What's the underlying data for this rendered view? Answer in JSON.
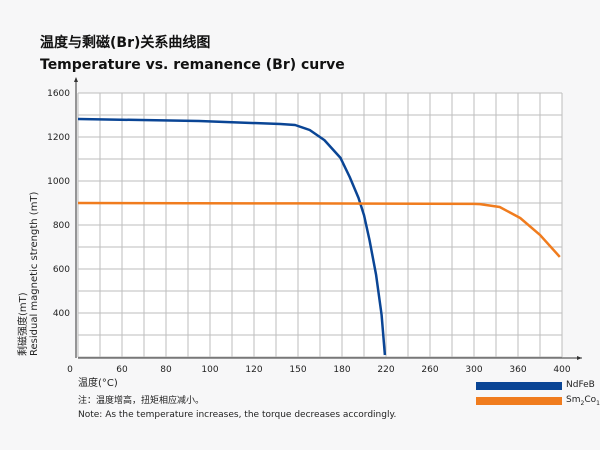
{
  "chart_data": {
    "type": "line",
    "title": "温度与剩磁(Br)关系曲线图",
    "subtitle": "Temperature vs. remanence (Br) curve",
    "xlabel": "温度(°C)",
    "ylabel_cn": "剩磁强度(mT)",
    "ylabel": "Residual magnetic strength (mT)",
    "x_ticks": [
      0,
      60,
      80,
      100,
      120,
      150,
      180,
      220,
      260,
      300,
      360,
      400
    ],
    "y_ticks": [
      400,
      600,
      800,
      1000,
      1200,
      1600
    ],
    "y_range": [
      200,
      1600
    ],
    "grid": true,
    "legend_position": "bottom-right",
    "series": [
      {
        "name": "NdFeB",
        "color": "#0a4595",
        "points": [
          [
            0,
            1364
          ],
          [
            95,
            1345
          ],
          [
            138,
            1318
          ],
          [
            148,
            1309
          ],
          [
            158,
            1264
          ],
          [
            168,
            1186
          ],
          [
            179,
            1105
          ],
          [
            187,
            1018
          ],
          [
            195,
            923
          ],
          [
            200,
            845
          ],
          [
            205,
            732
          ],
          [
            211,
            573
          ],
          [
            216,
            391
          ],
          [
            219,
            209
          ]
        ]
      },
      {
        "name": "Sm2Co17",
        "color": "#f07c1e",
        "points": [
          [
            0,
            900
          ],
          [
            150,
            898
          ],
          [
            300,
            896
          ],
          [
            308,
            895
          ],
          [
            335,
            882
          ],
          [
            362,
            832
          ],
          [
            380,
            755
          ],
          [
            398,
            655
          ]
        ]
      }
    ]
  },
  "legend": {
    "ndfeb": "NdFeB",
    "smco_main": "Sm",
    "smco_sub1": "2",
    "smco_mid": "Co",
    "smco_sub2": "17"
  },
  "notes": {
    "cn": "注：温度增高，扭矩相应减小。",
    "en": "Note: As the temperature increases, the torque decreases accordingly."
  }
}
